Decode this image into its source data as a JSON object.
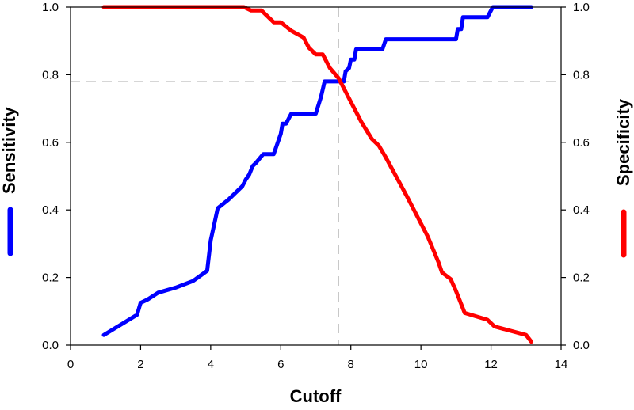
{
  "chart_data": {
    "type": "line",
    "title": "",
    "xlabel": "Cutoff",
    "ylabel_left": "Sensitivity",
    "ylabel_right": "Specificity",
    "xlim": [
      0,
      14
    ],
    "ylim": [
      0,
      1.0
    ],
    "x_ticks": [
      0,
      2,
      4,
      6,
      8,
      10,
      12,
      14
    ],
    "x_tick_labels": [
      "0",
      "2",
      "4",
      "6",
      "8",
      "10",
      "12",
      "14"
    ],
    "y_ticks": [
      0,
      0.2,
      0.4,
      0.6,
      0.8,
      1.0
    ],
    "y_tick_labels": [
      "0.0",
      "0.2",
      "0.4",
      "0.6",
      "0.8",
      "1.0"
    ],
    "grid": false,
    "legend": "axis-labels",
    "series": [
      {
        "name": "Sensitivity",
        "axis": "left",
        "color": "#0000ff",
        "points": [
          [
            0.95,
            0.03
          ],
          [
            1.9,
            0.09
          ],
          [
            2.0,
            0.125
          ],
          [
            2.2,
            0.135
          ],
          [
            2.5,
            0.155
          ],
          [
            3.0,
            0.17
          ],
          [
            3.5,
            0.19
          ],
          [
            3.9,
            0.22
          ],
          [
            4.0,
            0.31
          ],
          [
            4.2,
            0.405
          ],
          [
            4.5,
            0.43
          ],
          [
            4.9,
            0.47
          ],
          [
            5.0,
            0.49
          ],
          [
            5.1,
            0.505
          ],
          [
            5.2,
            0.53
          ],
          [
            5.3,
            0.54
          ],
          [
            5.5,
            0.565
          ],
          [
            5.8,
            0.565
          ],
          [
            6.0,
            0.625
          ],
          [
            6.05,
            0.655
          ],
          [
            6.15,
            0.655
          ],
          [
            6.3,
            0.685
          ],
          [
            7.0,
            0.685
          ],
          [
            7.15,
            0.735
          ],
          [
            7.25,
            0.78
          ],
          [
            7.8,
            0.78
          ],
          [
            7.85,
            0.81
          ],
          [
            7.95,
            0.82
          ],
          [
            8.0,
            0.845
          ],
          [
            8.1,
            0.845
          ],
          [
            8.15,
            0.875
          ],
          [
            8.9,
            0.875
          ],
          [
            9.0,
            0.905
          ],
          [
            11.0,
            0.905
          ],
          [
            11.05,
            0.935
          ],
          [
            11.15,
            0.935
          ],
          [
            11.2,
            0.97
          ],
          [
            11.9,
            0.97
          ],
          [
            12.05,
            1.0
          ],
          [
            13.15,
            1.0
          ]
        ]
      },
      {
        "name": "Specificity",
        "axis": "right",
        "color": "#ff0000",
        "points": [
          [
            0.95,
            1.0
          ],
          [
            4.95,
            1.0
          ],
          [
            5.15,
            0.99
          ],
          [
            5.45,
            0.99
          ],
          [
            5.6,
            0.975
          ],
          [
            5.8,
            0.955
          ],
          [
            6.0,
            0.955
          ],
          [
            6.3,
            0.93
          ],
          [
            6.65,
            0.91
          ],
          [
            6.8,
            0.88
          ],
          [
            7.0,
            0.86
          ],
          [
            7.2,
            0.86
          ],
          [
            7.4,
            0.82
          ],
          [
            7.65,
            0.79
          ],
          [
            8.0,
            0.72
          ],
          [
            8.3,
            0.66
          ],
          [
            8.6,
            0.61
          ],
          [
            8.8,
            0.59
          ],
          [
            9.0,
            0.555
          ],
          [
            9.6,
            0.44
          ],
          [
            10.2,
            0.32
          ],
          [
            10.5,
            0.245
          ],
          [
            10.6,
            0.215
          ],
          [
            10.85,
            0.195
          ],
          [
            11.0,
            0.16
          ],
          [
            11.25,
            0.095
          ],
          [
            11.9,
            0.075
          ],
          [
            12.1,
            0.055
          ],
          [
            13.0,
            0.03
          ],
          [
            13.15,
            0.01
          ]
        ]
      }
    ],
    "reference_lines": {
      "x": 7.65,
      "y": 0.78,
      "style": "dashed",
      "color": "#c8c8c8"
    }
  }
}
